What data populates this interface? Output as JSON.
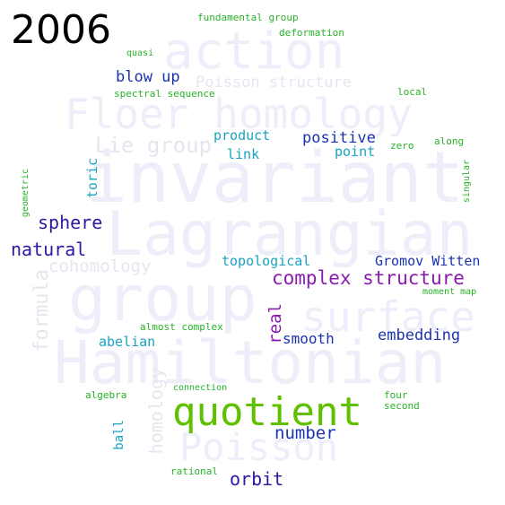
{
  "year": "2006",
  "colors": {
    "lime": "#5fc000",
    "green": "#26b326",
    "teal": "#1aa3c2",
    "blue": "#1a33b0",
    "indigo": "#2a1aa0",
    "purple": "#8a1ab0",
    "faint": "#eeeefa"
  },
  "background_words": {
    "action": "action",
    "floer_homology": "Floer homology",
    "invariant": "invariant",
    "lagrangian": "Lagrangian",
    "group": "group",
    "hamiltonian": "Hamiltonian",
    "poisson": "Poisson",
    "surface": "surface",
    "lie_group": "Lie group",
    "poisson_structure": "Poisson structure",
    "cohomology": "cohomology",
    "formula": "formula",
    "homology": "homology"
  },
  "words": {
    "fundamental_group": "fundamental group",
    "deformation": "deformation",
    "quasi": "quasi",
    "blow_up": "blow up",
    "spectral_sequence": "spectral sequence",
    "local": "local",
    "product": "product",
    "positive": "positive",
    "zero": "zero",
    "along": "along",
    "link": "link",
    "point": "point",
    "toric": "toric",
    "geometric": "geometric",
    "singular": "singular",
    "sphere": "sphere",
    "natural": "natural",
    "topological": "topological",
    "gromov_witten": "Gromov Witten",
    "complex_structure": "complex structure",
    "moment_map": "moment map",
    "real": "real",
    "almost_complex": "almost complex",
    "smooth": "smooth",
    "embedding": "embedding",
    "abelian": "abelian",
    "connection": "connection",
    "four": "four",
    "algebra": "algebra",
    "second": "second",
    "quotient": "quotient",
    "number": "number",
    "ball": "ball",
    "rational": "rational",
    "orbit": "orbit"
  }
}
